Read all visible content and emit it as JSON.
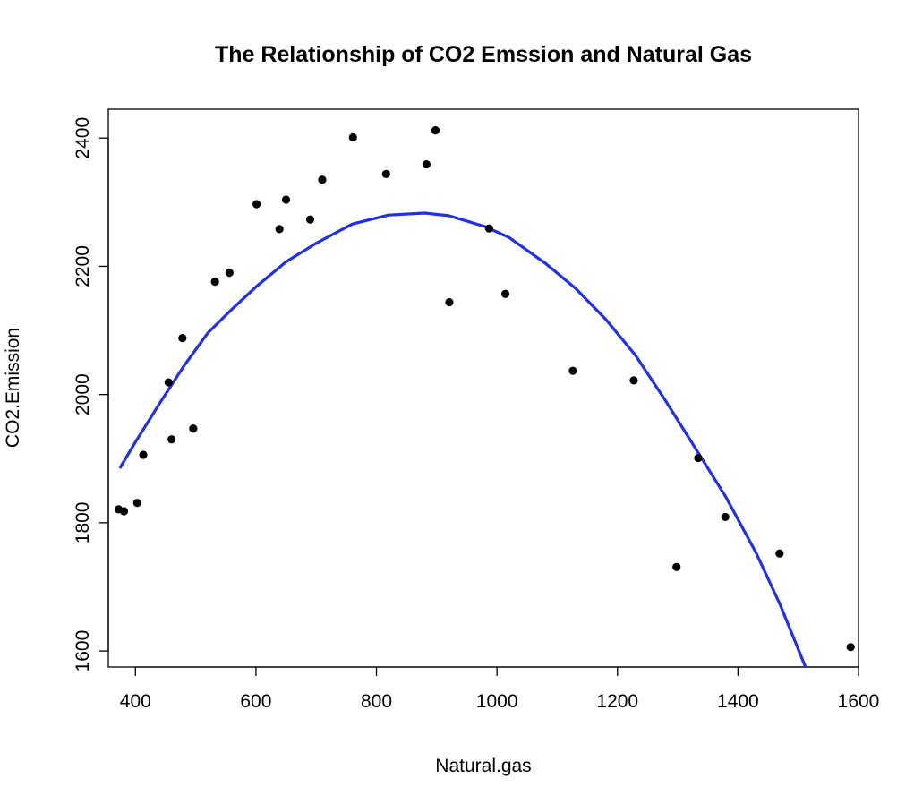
{
  "chart_data": {
    "type": "scatter",
    "title": "The Relationship of CO2 Emssion and Natural Gas",
    "xlabel": "Natural.gas",
    "ylabel": "CO2.Emission",
    "xlim": [
      355,
      1600
    ],
    "ylim": [
      1575,
      2445
    ],
    "x_ticks": [
      400,
      600,
      800,
      1000,
      1200,
      1400,
      1600
    ],
    "y_ticks": [
      1600,
      1800,
      2000,
      2200,
      2400
    ],
    "grid": false,
    "legend": "none",
    "points": [
      {
        "x": 372,
        "y": 1821
      },
      {
        "x": 381,
        "y": 1818
      },
      {
        "x": 403,
        "y": 1831
      },
      {
        "x": 413,
        "y": 1906
      },
      {
        "x": 455,
        "y": 2019
      },
      {
        "x": 460,
        "y": 1930
      },
      {
        "x": 478,
        "y": 2088
      },
      {
        "x": 496,
        "y": 1947
      },
      {
        "x": 532,
        "y": 2176
      },
      {
        "x": 556,
        "y": 2190
      },
      {
        "x": 601,
        "y": 2297
      },
      {
        "x": 639,
        "y": 2258
      },
      {
        "x": 650,
        "y": 2304
      },
      {
        "x": 690,
        "y": 2273
      },
      {
        "x": 710,
        "y": 2335
      },
      {
        "x": 761,
        "y": 2401
      },
      {
        "x": 816,
        "y": 2344
      },
      {
        "x": 883,
        "y": 2359
      },
      {
        "x": 898,
        "y": 2412
      },
      {
        "x": 921,
        "y": 2144
      },
      {
        "x": 987,
        "y": 2259
      },
      {
        "x": 1014,
        "y": 2157
      },
      {
        "x": 1126,
        "y": 2037
      },
      {
        "x": 1227,
        "y": 2022
      },
      {
        "x": 1298,
        "y": 1731
      },
      {
        "x": 1334,
        "y": 1901
      },
      {
        "x": 1379,
        "y": 1809
      },
      {
        "x": 1469,
        "y": 1752
      },
      {
        "x": 1587,
        "y": 1606
      }
    ],
    "fit_line": {
      "color": "#1f2ff0",
      "x": [
        374,
        400,
        440,
        480,
        520,
        560,
        600,
        650,
        700,
        760,
        820,
        880,
        920,
        980,
        1020,
        1080,
        1130,
        1180,
        1230,
        1280,
        1330,
        1380,
        1430,
        1470,
        1512
      ],
      "y": [
        1885,
        1926,
        1986,
        2044,
        2096,
        2133,
        2168,
        2207,
        2236,
        2266,
        2280,
        2283,
        2279,
        2262,
        2245,
        2205,
        2166,
        2118,
        2061,
        1990,
        1915,
        1840,
        1753,
        1672,
        1575
      ]
    },
    "point_color": "#000000"
  }
}
